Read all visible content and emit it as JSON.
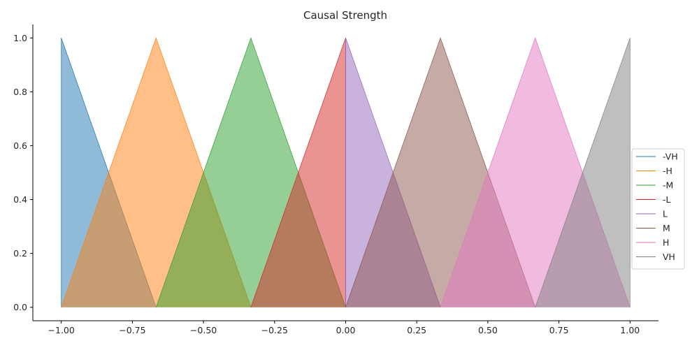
{
  "chart_data": {
    "type": "area",
    "title": "Causal Strength",
    "xlabel": "",
    "ylabel": "",
    "xlim": [
      -1.1,
      1.1
    ],
    "ylim": [
      -0.05,
      1.05
    ],
    "xticks": [
      -1.0,
      -0.75,
      -0.5,
      -0.25,
      0.0,
      0.25,
      0.5,
      0.75,
      1.0
    ],
    "xtick_labels": [
      "−1.00",
      "−0.75",
      "−0.50",
      "−0.25",
      "0.00",
      "0.25",
      "0.50",
      "0.75",
      "1.00"
    ],
    "yticks": [
      0.0,
      0.2,
      0.4,
      0.6,
      0.8,
      1.0
    ],
    "ytick_labels": [
      "0.0",
      "0.2",
      "0.4",
      "0.6",
      "0.8",
      "1.0"
    ],
    "grid": false,
    "legend_position": "center-right",
    "series": [
      {
        "name": "-VH",
        "color": "#1f77b4",
        "x": [
          -1.0,
          -1.0,
          -0.6667
        ],
        "y": [
          0,
          1,
          0
        ]
      },
      {
        "name": "-H",
        "color": "#ff7f0e",
        "x": [
          -1.0,
          -0.6667,
          -0.3333
        ],
        "y": [
          0,
          1,
          0
        ]
      },
      {
        "name": "-M",
        "color": "#2ca02c",
        "x": [
          -0.6667,
          -0.3333,
          0.0
        ],
        "y": [
          0,
          1,
          0
        ]
      },
      {
        "name": "-L",
        "color": "#d62728",
        "x": [
          -0.3333,
          0.0,
          0.0
        ],
        "y": [
          0,
          1,
          0
        ]
      },
      {
        "name": "L",
        "color": "#9467bd",
        "x": [
          0.0,
          0.0,
          0.3333
        ],
        "y": [
          0,
          1,
          0
        ]
      },
      {
        "name": "M",
        "color": "#8c564b",
        "x": [
          0.0,
          0.3333,
          0.6667
        ],
        "y": [
          0,
          1,
          0
        ]
      },
      {
        "name": "H",
        "color": "#e377c2",
        "x": [
          0.3333,
          0.6667,
          1.0
        ],
        "y": [
          0,
          1,
          0
        ]
      },
      {
        "name": "VH",
        "color": "#7f7f7f",
        "x": [
          0.6667,
          1.0,
          1.0
        ],
        "y": [
          0,
          1,
          0
        ]
      }
    ]
  }
}
